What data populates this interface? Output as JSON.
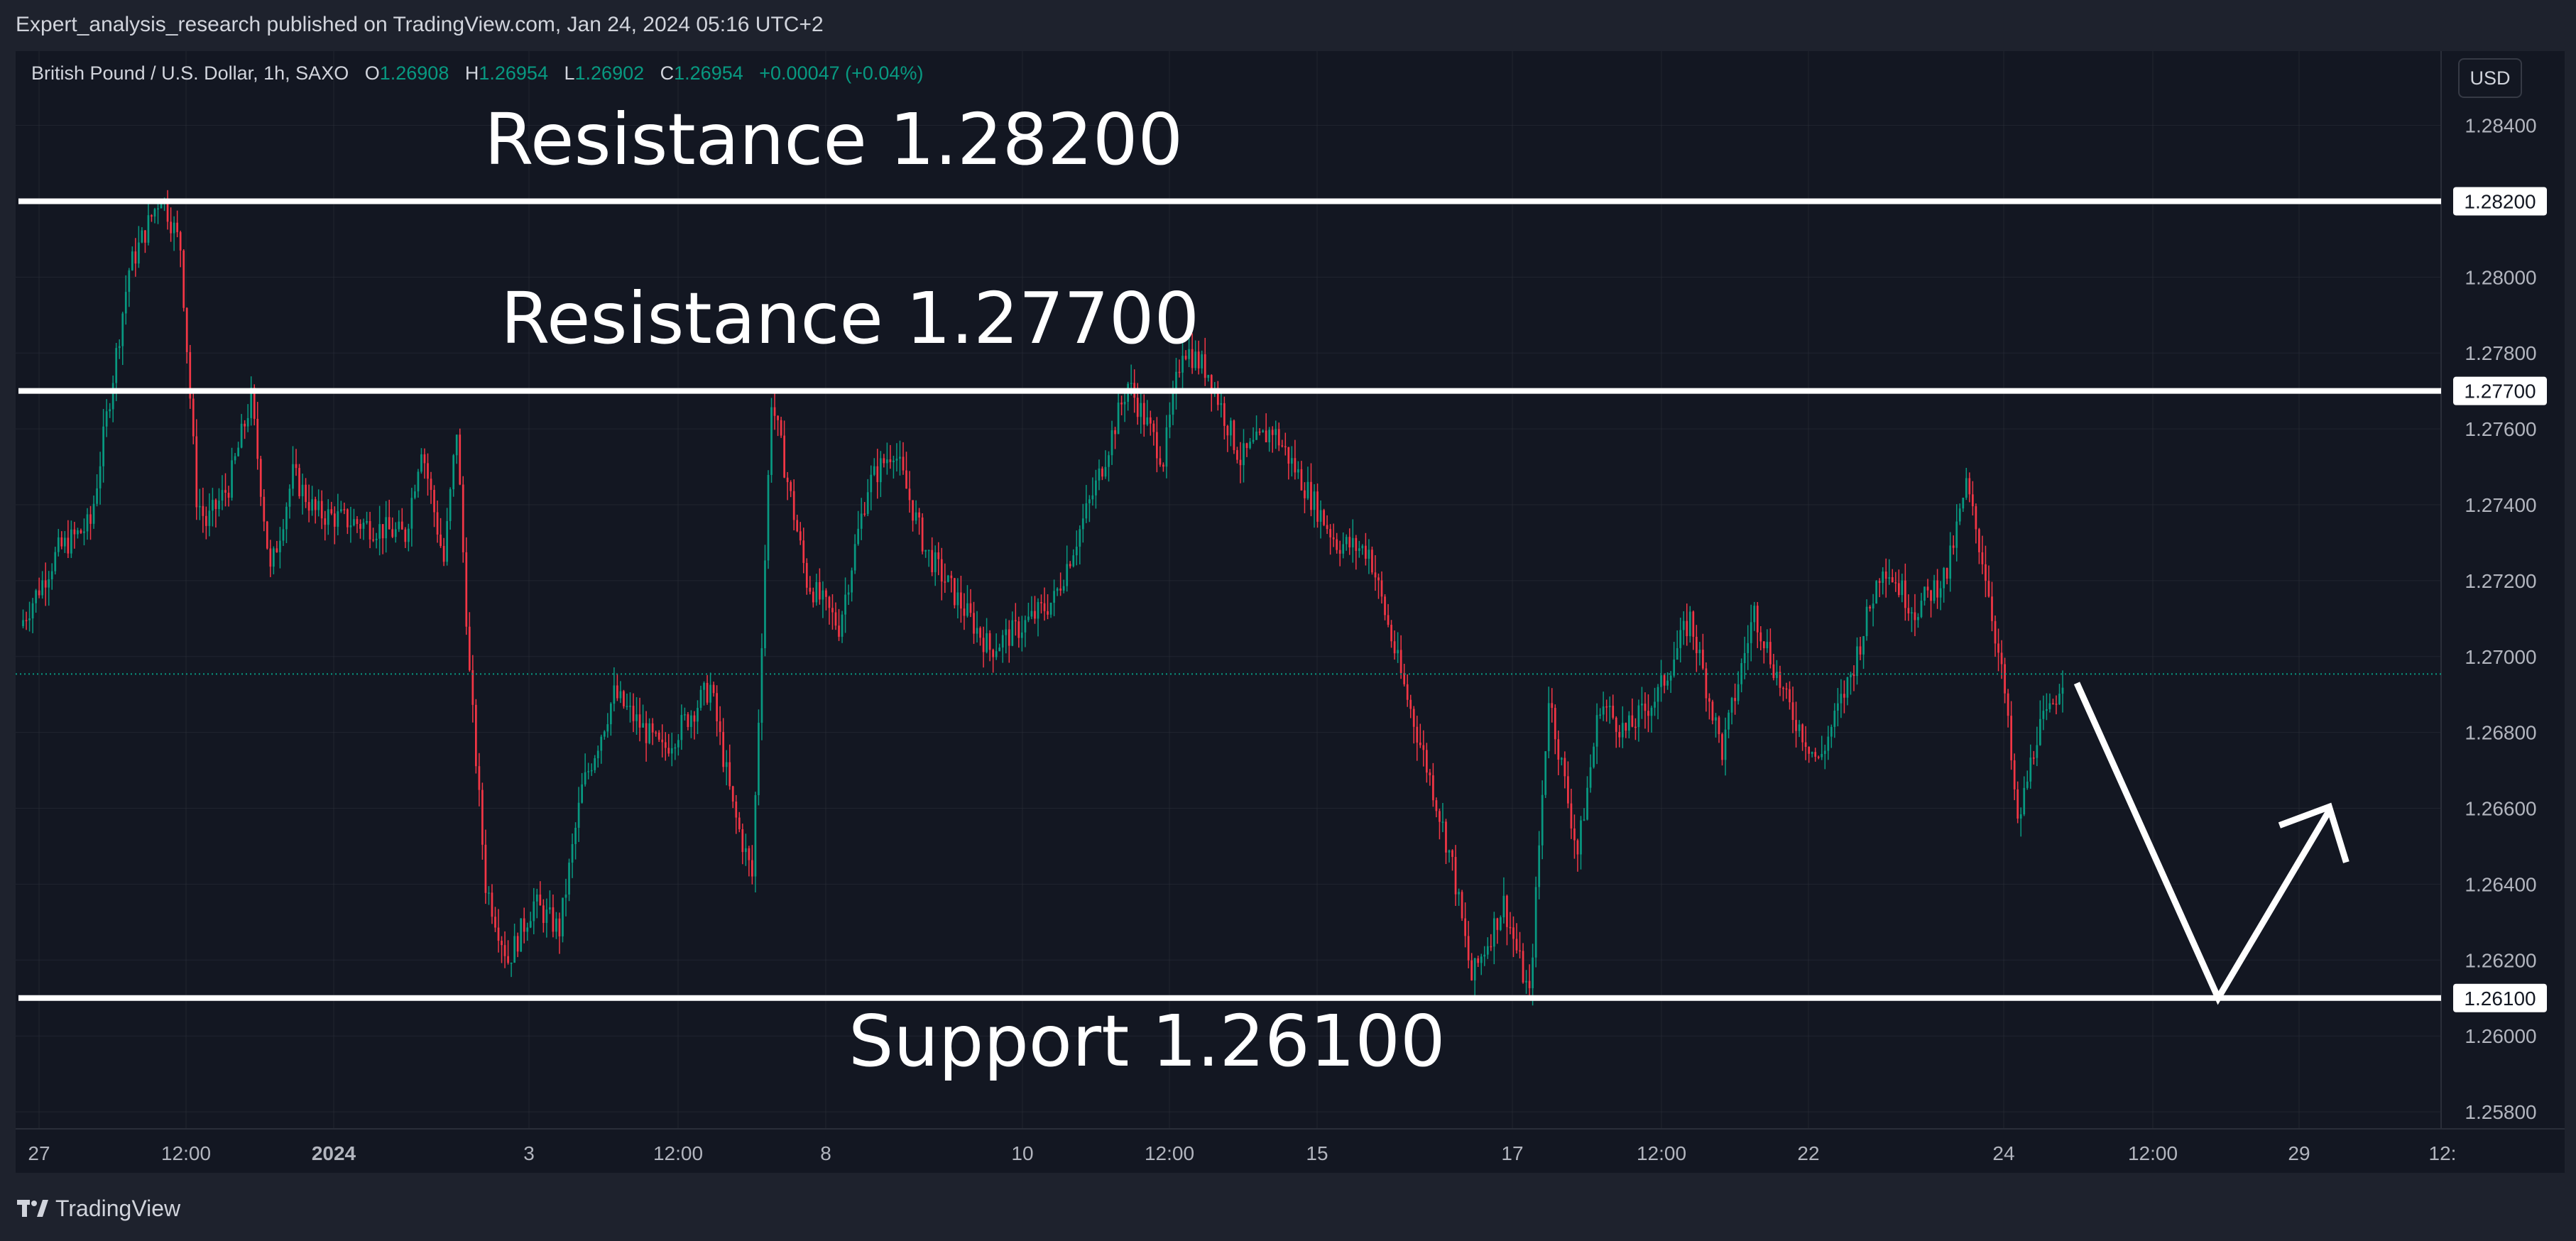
{
  "header": {
    "publish_text": "Expert_analysis_research published on TradingView.com, Jan 24, 2024 05:16 UTC+2"
  },
  "symbol": {
    "name": "British Pound / U.S. Dollar, 1h, SAXO",
    "o_label": "O",
    "o_value": "1.26908",
    "h_label": "H",
    "h_value": "1.26954",
    "l_label": "L",
    "l_value": "1.26902",
    "c_label": "C",
    "c_value": "1.26954",
    "change": "+0.00047 (+0.04%)"
  },
  "currency_button": "USD",
  "annotations": {
    "resistance_1": "Resistance 1.28200",
    "resistance_2": "Resistance 1.27700",
    "support": "Support 1.26100"
  },
  "colors": {
    "background": "#131722",
    "panel": "#1e222d",
    "up": "#089981",
    "down": "#f23645",
    "level_line": "#ffffff",
    "grid": "#2a2e39"
  },
  "footer": {
    "brand": "TradingView",
    "logo_icon": "tradingview-logo-icon"
  },
  "chart_data": {
    "type": "candlestick",
    "symbol": "GBPUSD",
    "timeframe": "1h",
    "ylim": [
      1.2572,
      1.2852
    ],
    "y_ticks": [
      "1.28400",
      "1.28000",
      "1.27800",
      "1.27600",
      "1.27400",
      "1.27200",
      "1.27000",
      "1.26800",
      "1.26600",
      "1.26400",
      "1.26200",
      "1.26000",
      "1.25800"
    ],
    "x_ticks": [
      "27",
      "12:00",
      "2024",
      "3",
      "12:00",
      "8",
      "10",
      "12:00",
      "15",
      "17",
      "12:00",
      "22",
      "24",
      "12:00",
      "29",
      "12:"
    ],
    "levels": [
      {
        "label": "1.28200",
        "value": 1.282
      },
      {
        "label": "1.27700",
        "value": 1.277
      },
      {
        "label": "1.26100",
        "value": 1.261
      }
    ],
    "last_price": 1.26954,
    "path_points": [
      [
        0,
        1.2708
      ],
      [
        12,
        1.2728
      ],
      [
        22,
        1.2735
      ],
      [
        34,
        1.2802
      ],
      [
        44,
        1.2822
      ],
      [
        50,
        1.2808
      ],
      [
        55,
        1.2742
      ],
      [
        58,
        1.2735
      ],
      [
        65,
        1.2745
      ],
      [
        72,
        1.2768
      ],
      [
        78,
        1.2722
      ],
      [
        85,
        1.2748
      ],
      [
        92,
        1.2738
      ],
      [
        120,
        1.2732
      ],
      [
        125,
        1.2756
      ],
      [
        132,
        1.2725
      ],
      [
        136,
        1.276
      ],
      [
        140,
        1.2695
      ],
      [
        145,
        1.264
      ],
      [
        152,
        1.262
      ],
      [
        160,
        1.2635
      ],
      [
        168,
        1.2628
      ],
      [
        175,
        1.2665
      ],
      [
        185,
        1.269
      ],
      [
        200,
        1.2675
      ],
      [
        215,
        1.2692
      ],
      [
        222,
        1.266
      ],
      [
        228,
        1.2642
      ],
      [
        234,
        1.2768
      ],
      [
        245,
        1.272
      ],
      [
        255,
        1.2708
      ],
      [
        264,
        1.2745
      ],
      [
        272,
        1.2755
      ],
      [
        282,
        1.2728
      ],
      [
        292,
        1.2715
      ],
      [
        302,
        1.2702
      ],
      [
        312,
        1.2708
      ],
      [
        322,
        1.2715
      ],
      [
        335,
        1.2745
      ],
      [
        345,
        1.2772
      ],
      [
        356,
        1.2752
      ],
      [
        362,
        1.2782
      ],
      [
        370,
        1.2775
      ],
      [
        380,
        1.2752
      ],
      [
        390,
        1.276
      ],
      [
        400,
        1.2745
      ],
      [
        410,
        1.273
      ],
      [
        420,
        1.2728
      ],
      [
        430,
        1.2695
      ],
      [
        440,
        1.2665
      ],
      [
        446,
        1.2645
      ],
      [
        452,
        1.2615
      ],
      [
        462,
        1.2635
      ],
      [
        470,
        1.261
      ],
      [
        476,
        1.269
      ],
      [
        485,
        1.2648
      ],
      [
        492,
        1.2688
      ],
      [
        500,
        1.268
      ],
      [
        510,
        1.269
      ],
      [
        520,
        1.271
      ],
      [
        530,
        1.2675
      ],
      [
        540,
        1.2712
      ],
      [
        550,
        1.2688
      ],
      [
        560,
        1.2672
      ],
      [
        570,
        1.2695
      ],
      [
        580,
        1.2725
      ],
      [
        590,
        1.2712
      ],
      [
        600,
        1.2722
      ],
      [
        606,
        1.2745
      ],
      [
        612,
        1.2722
      ],
      [
        618,
        1.269
      ],
      [
        622,
        1.2655
      ],
      [
        628,
        1.268
      ],
      [
        632,
        1.2685
      ],
      [
        636,
        1.2695
      ]
    ],
    "projection": [
      [
        636,
        1.2693
      ],
      [
        680,
        1.261
      ],
      [
        715,
        1.266
      ]
    ]
  }
}
